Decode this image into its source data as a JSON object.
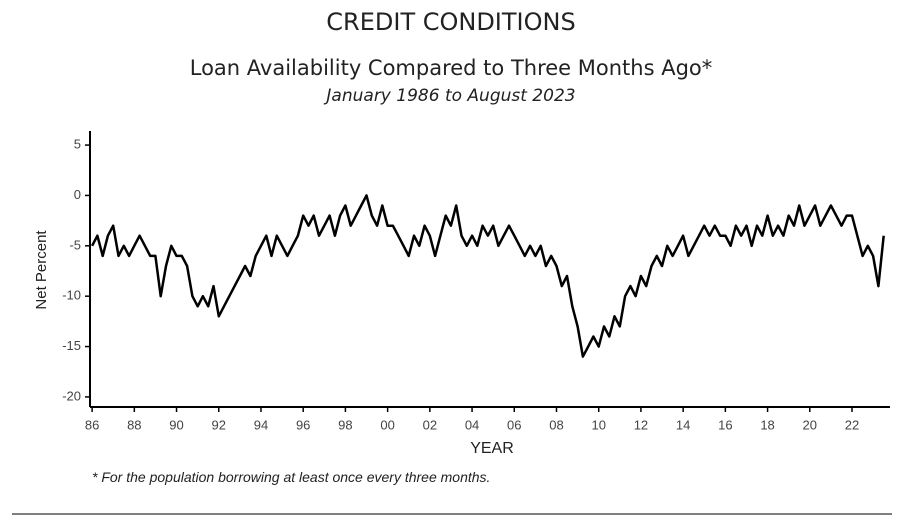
{
  "chart_data": {
    "type": "line",
    "title": "CREDIT CONDITIONS",
    "subtitle": "Loan Availability Compared to Three Months Ago*",
    "date_range": "January 1986 to August 2023",
    "y_label": "Net Percent",
    "x_label": "YEAR",
    "footnote": "* For the population borrowing at least once every three months.",
    "xlim": [
      1985.9,
      2023.8
    ],
    "ylim": [
      -21,
      6
    ],
    "yticks": [
      5,
      0,
      -5,
      -10,
      -15,
      -20
    ],
    "xticks": [
      {
        "value": 1986,
        "label": "86"
      },
      {
        "value": 1988,
        "label": "88"
      },
      {
        "value": 1990,
        "label": "90"
      },
      {
        "value": 1992,
        "label": "92"
      },
      {
        "value": 1994,
        "label": "94"
      },
      {
        "value": 1996,
        "label": "96"
      },
      {
        "value": 1998,
        "label": "98"
      },
      {
        "value": 2000,
        "label": "00"
      },
      {
        "value": 2002,
        "label": "02"
      },
      {
        "value": 2004,
        "label": "04"
      },
      {
        "value": 2006,
        "label": "06"
      },
      {
        "value": 2008,
        "label": "08"
      },
      {
        "value": 2010,
        "label": "10"
      },
      {
        "value": 2012,
        "label": "12"
      },
      {
        "value": 2014,
        "label": "14"
      },
      {
        "value": 2016,
        "label": "16"
      },
      {
        "value": 2018,
        "label": "18"
      },
      {
        "value": 2020,
        "label": "20"
      },
      {
        "value": 2022,
        "label": "22"
      }
    ],
    "grid": false,
    "x": [
      1986,
      1986.25,
      1986.5,
      1986.75,
      1987,
      1987.25,
      1987.5,
      1987.75,
      1988,
      1988.25,
      1988.5,
      1988.75,
      1989,
      1989.25,
      1989.5,
      1989.75,
      1990,
      1990.25,
      1990.5,
      1990.75,
      1991,
      1991.25,
      1991.5,
      1991.75,
      1992,
      1992.25,
      1992.5,
      1992.75,
      1993,
      1993.25,
      1993.5,
      1993.75,
      1994,
      1994.25,
      1994.5,
      1994.75,
      1995,
      1995.25,
      1995.5,
      1995.75,
      1996,
      1996.25,
      1996.5,
      1996.75,
      1997,
      1997.25,
      1997.5,
      1997.75,
      1998,
      1998.25,
      1998.5,
      1998.75,
      1999,
      1999.25,
      1999.5,
      1999.75,
      2000,
      2000.25,
      2000.5,
      2000.75,
      2001,
      2001.25,
      2001.5,
      2001.75,
      2002,
      2002.25,
      2002.5,
      2002.75,
      2003,
      2003.25,
      2003.5,
      2003.75,
      2004,
      2004.25,
      2004.5,
      2004.75,
      2005,
      2005.25,
      2005.5,
      2005.75,
      2006,
      2006.25,
      2006.5,
      2006.75,
      2007,
      2007.25,
      2007.5,
      2007.75,
      2008,
      2008.25,
      2008.5,
      2008.75,
      2009,
      2009.25,
      2009.5,
      2009.75,
      2010,
      2010.25,
      2010.5,
      2010.75,
      2011,
      2011.25,
      2011.5,
      2011.75,
      2012,
      2012.25,
      2012.5,
      2012.75,
      2013,
      2013.25,
      2013.5,
      2013.75,
      2014,
      2014.25,
      2014.5,
      2014.75,
      2015,
      2015.25,
      2015.5,
      2015.75,
      2016,
      2016.25,
      2016.5,
      2016.75,
      2017,
      2017.25,
      2017.5,
      2017.75,
      2018,
      2018.25,
      2018.5,
      2018.75,
      2019,
      2019.25,
      2019.5,
      2019.75,
      2020,
      2020.25,
      2020.5,
      2020.75,
      2021,
      2021.25,
      2021.5,
      2021.75,
      2022,
      2022.25,
      2022.5,
      2022.75,
      2023,
      2023.25,
      2023.5
    ],
    "series": [
      {
        "name": "Net Percent",
        "color": "#000000",
        "values": [
          -5,
          -4,
          -6,
          -4,
          -3,
          -6,
          -5,
          -6,
          -5,
          -4,
          -5,
          -6,
          -6,
          -10,
          -7,
          -5,
          -6,
          -6,
          -7,
          -10,
          -11,
          -10,
          -11,
          -9,
          -12,
          -11,
          -10,
          -9,
          -8,
          -7,
          -8,
          -6,
          -5,
          -4,
          -6,
          -4,
          -5,
          -6,
          -5,
          -4,
          -2,
          -3,
          -2,
          -4,
          -3,
          -2,
          -4,
          -2,
          -1,
          -3,
          -2,
          -1,
          0,
          -2,
          -3,
          -1,
          -3,
          -3,
          -4,
          -5,
          -6,
          -4,
          -5,
          -3,
          -4,
          -6,
          -4,
          -2,
          -3,
          -1,
          -4,
          -5,
          -4,
          -5,
          -3,
          -4,
          -3,
          -5,
          -4,
          -3,
          -4,
          -5,
          -6,
          -5,
          -6,
          -5,
          -7,
          -6,
          -7,
          -9,
          -8,
          -11,
          -13,
          -16,
          -15,
          -14,
          -15,
          -13,
          -14,
          -12,
          -13,
          -10,
          -9,
          -10,
          -8,
          -9,
          -7,
          -6,
          -7,
          -5,
          -6,
          -5,
          -4,
          -6,
          -5,
          -4,
          -3,
          -4,
          -3,
          -4,
          -4,
          -5,
          -3,
          -4,
          -3,
          -5,
          -3,
          -4,
          -2,
          -4,
          -3,
          -4,
          -2,
          -3,
          -1,
          -3,
          -2,
          -1,
          -3,
          -2,
          -1,
          -2,
          -3,
          -2,
          -2,
          -4,
          -6,
          -5,
          -6,
          -9,
          -4
        ]
      }
    ]
  }
}
